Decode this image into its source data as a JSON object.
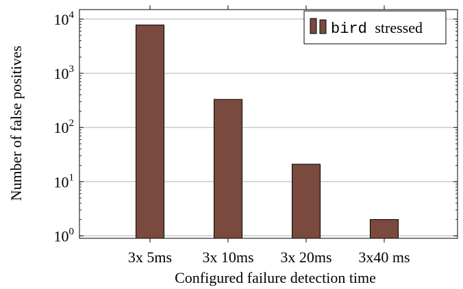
{
  "chart_data": {
    "type": "bar",
    "yscale": "log",
    "ylim": [
      0.9,
      15000
    ],
    "categories": [
      "3x 5ms",
      "3x 10ms",
      "3x 20ms",
      "3x40 ms"
    ],
    "series": [
      {
        "name": "bird",
        "name_suffix": "stressed",
        "color": "#7a4a3e",
        "values": [
          7800,
          330,
          21,
          2
        ]
      }
    ],
    "y_ticks": [
      {
        "value": 1,
        "base": "10",
        "exp": "0"
      },
      {
        "value": 10,
        "base": "10",
        "exp": "1"
      },
      {
        "value": 100,
        "base": "10",
        "exp": "2"
      },
      {
        "value": 1000,
        "base": "10",
        "exp": "3"
      },
      {
        "value": 10000,
        "base": "10",
        "exp": "4"
      }
    ],
    "xlabel": "Configured failure detection time",
    "ylabel": "Number of false positives",
    "grid": "horizontal-major",
    "legend_position": "top-right"
  }
}
